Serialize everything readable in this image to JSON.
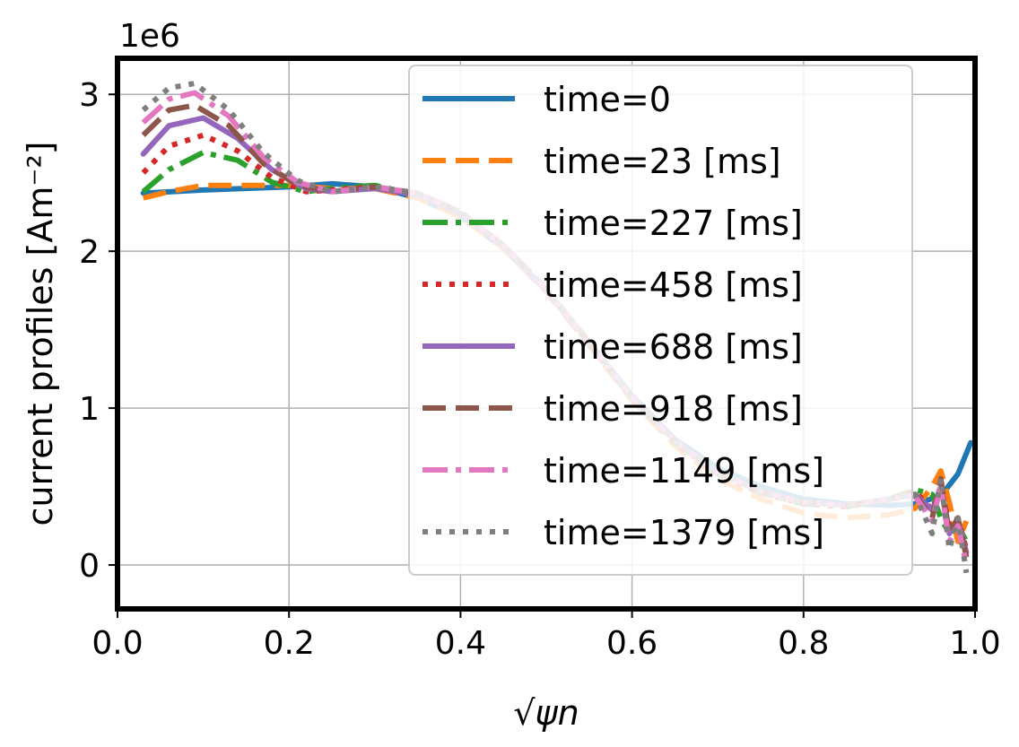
{
  "chart_data": {
    "type": "line",
    "title": "",
    "offset_label": "1e6",
    "xlabel": "√ψn",
    "ylabel": "current profiles [Am⁻²]",
    "xlim": [
      0.0,
      1.0
    ],
    "ylim": [
      -0.28,
      3.23
    ],
    "xticks": [
      0.0,
      0.2,
      0.4,
      0.6,
      0.8,
      1.0
    ],
    "xtick_labels": [
      "0.0",
      "0.2",
      "0.4",
      "0.6",
      "0.8",
      "1.0"
    ],
    "yticks": [
      0,
      1,
      2,
      3
    ],
    "ytick_labels": [
      "0",
      "1",
      "2",
      "3"
    ],
    "grid": true,
    "legend_position": "top-right",
    "series": [
      {
        "name": "time=0",
        "color": "#1f77b4",
        "dash": "solid",
        "x": [
          0.03,
          0.1,
          0.2,
          0.25,
          0.3,
          0.35,
          0.4,
          0.45,
          0.5,
          0.55,
          0.6,
          0.65,
          0.7,
          0.75,
          0.8,
          0.85,
          0.9,
          0.93,
          0.96,
          0.98,
          0.995
        ],
        "y": [
          2.37,
          2.39,
          2.41,
          2.43,
          2.41,
          2.34,
          2.22,
          2.02,
          1.75,
          1.42,
          1.08,
          0.8,
          0.62,
          0.5,
          0.42,
          0.39,
          0.38,
          0.39,
          0.44,
          0.58,
          0.78
        ]
      },
      {
        "name": "time=23 [ms]",
        "color": "#ff7f0e",
        "dash": "dashed",
        "x": [
          0.03,
          0.06,
          0.1,
          0.15,
          0.2,
          0.25,
          0.3,
          0.35,
          0.4,
          0.45,
          0.5,
          0.55,
          0.6,
          0.65,
          0.7,
          0.75,
          0.8,
          0.85,
          0.9,
          0.93,
          0.95,
          0.96,
          0.97,
          0.98,
          0.99
        ],
        "y": [
          2.34,
          2.38,
          2.42,
          2.42,
          2.42,
          2.4,
          2.4,
          2.34,
          2.22,
          2.02,
          1.74,
          1.4,
          1.05,
          0.76,
          0.55,
          0.42,
          0.33,
          0.3,
          0.32,
          0.36,
          0.5,
          0.6,
          0.4,
          0.15,
          0.28
        ]
      },
      {
        "name": "time=227 [ms]",
        "color": "#2ca02c",
        "dash": "dashdot",
        "x": [
          0.03,
          0.06,
          0.1,
          0.14,
          0.18,
          0.22,
          0.25,
          0.3,
          0.35,
          0.4,
          0.45,
          0.5,
          0.55,
          0.6,
          0.65,
          0.7,
          0.75,
          0.8,
          0.85,
          0.9,
          0.93,
          0.95,
          0.96,
          0.97,
          0.98,
          0.99
        ],
        "y": [
          2.38,
          2.52,
          2.63,
          2.58,
          2.44,
          2.38,
          2.4,
          2.42,
          2.36,
          2.24,
          2.03,
          1.75,
          1.41,
          1.06,
          0.78,
          0.58,
          0.46,
          0.39,
          0.37,
          0.42,
          0.48,
          0.45,
          0.3,
          0.2,
          0.25,
          0.15
        ]
      },
      {
        "name": "time=458 [ms]",
        "color": "#d62728",
        "dash": "dotted",
        "x": [
          0.03,
          0.06,
          0.1,
          0.14,
          0.18,
          0.22,
          0.25,
          0.3,
          0.35,
          0.4,
          0.45,
          0.5,
          0.55,
          0.6,
          0.65,
          0.7,
          0.75,
          0.8,
          0.85,
          0.9,
          0.93,
          0.95,
          0.96,
          0.97,
          0.98,
          0.99
        ],
        "y": [
          2.5,
          2.67,
          2.74,
          2.64,
          2.47,
          2.38,
          2.39,
          2.41,
          2.36,
          2.24,
          2.03,
          1.75,
          1.41,
          1.06,
          0.78,
          0.58,
          0.46,
          0.39,
          0.37,
          0.42,
          0.47,
          0.35,
          0.5,
          0.25,
          0.3,
          0.1
        ]
      },
      {
        "name": "time=688 [ms]",
        "color": "#9467bd",
        "dash": "solid",
        "x": [
          0.03,
          0.06,
          0.1,
          0.14,
          0.18,
          0.22,
          0.25,
          0.3,
          0.35,
          0.4,
          0.45,
          0.5,
          0.55,
          0.6,
          0.65,
          0.7,
          0.75,
          0.8,
          0.85,
          0.9,
          0.93,
          0.95,
          0.96,
          0.97,
          0.98,
          0.99
        ],
        "y": [
          2.62,
          2.8,
          2.85,
          2.72,
          2.52,
          2.4,
          2.38,
          2.4,
          2.36,
          2.24,
          2.03,
          1.75,
          1.42,
          1.07,
          0.79,
          0.59,
          0.47,
          0.4,
          0.38,
          0.42,
          0.45,
          0.35,
          0.5,
          0.2,
          0.28,
          0.08
        ]
      },
      {
        "name": "time=918 [ms]",
        "color": "#8c564b",
        "dash": "dashed",
        "x": [
          0.03,
          0.06,
          0.09,
          0.13,
          0.17,
          0.21,
          0.25,
          0.3,
          0.35,
          0.4,
          0.45,
          0.5,
          0.55,
          0.6,
          0.65,
          0.7,
          0.75,
          0.8,
          0.85,
          0.9,
          0.93,
          0.95,
          0.96,
          0.97,
          0.98,
          0.99
        ],
        "y": [
          2.74,
          2.9,
          2.93,
          2.8,
          2.56,
          2.42,
          2.38,
          2.41,
          2.37,
          2.25,
          2.04,
          1.76,
          1.42,
          1.07,
          0.79,
          0.59,
          0.47,
          0.4,
          0.38,
          0.42,
          0.45,
          0.3,
          0.55,
          0.2,
          0.3,
          0.05
        ]
      },
      {
        "name": "time=1149 [ms]",
        "color": "#e377c2",
        "dash": "dashdot",
        "x": [
          0.03,
          0.06,
          0.09,
          0.13,
          0.17,
          0.21,
          0.25,
          0.3,
          0.35,
          0.4,
          0.45,
          0.5,
          0.55,
          0.6,
          0.65,
          0.7,
          0.75,
          0.8,
          0.85,
          0.9,
          0.93,
          0.95,
          0.96,
          0.97,
          0.98,
          0.99
        ],
        "y": [
          2.82,
          2.97,
          3.01,
          2.86,
          2.6,
          2.44,
          2.38,
          2.41,
          2.37,
          2.25,
          2.04,
          1.76,
          1.42,
          1.07,
          0.79,
          0.59,
          0.47,
          0.4,
          0.38,
          0.42,
          0.44,
          0.28,
          0.5,
          0.15,
          0.25,
          0.0
        ]
      },
      {
        "name": "time=1379 [ms]",
        "color": "#7f7f7f",
        "dash": "dotted",
        "x": [
          0.03,
          0.06,
          0.09,
          0.13,
          0.17,
          0.21,
          0.25,
          0.3,
          0.35,
          0.4,
          0.45,
          0.5,
          0.55,
          0.6,
          0.65,
          0.7,
          0.75,
          0.8,
          0.85,
          0.9,
          0.93,
          0.95,
          0.96,
          0.97,
          0.98,
          0.99
        ],
        "y": [
          2.9,
          3.04,
          3.07,
          2.9,
          2.63,
          2.45,
          2.38,
          2.41,
          2.37,
          2.25,
          2.04,
          1.76,
          1.42,
          1.07,
          0.79,
          0.59,
          0.47,
          0.4,
          0.38,
          0.42,
          0.45,
          0.2,
          0.55,
          0.1,
          0.3,
          -0.05
        ]
      }
    ]
  }
}
